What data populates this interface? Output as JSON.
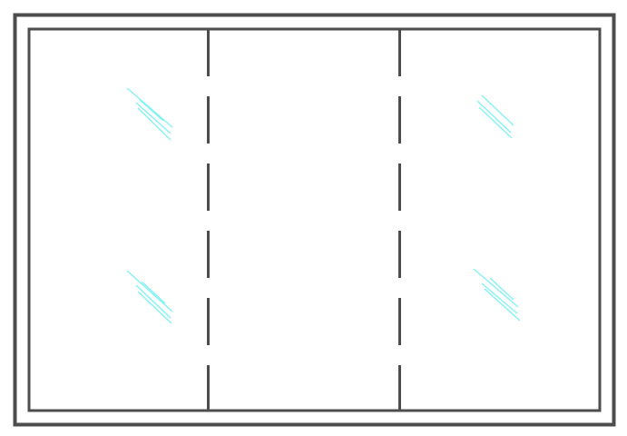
{
  "drawing": {
    "element_type": "window-elevation",
    "panel_count": 3,
    "divider_style": "dashed",
    "glass_reflection_marks": 4
  },
  "colors": {
    "background": "#ffffff",
    "frame_stroke": "#4d4d4d",
    "glass_marks": "#7ff2f4"
  }
}
